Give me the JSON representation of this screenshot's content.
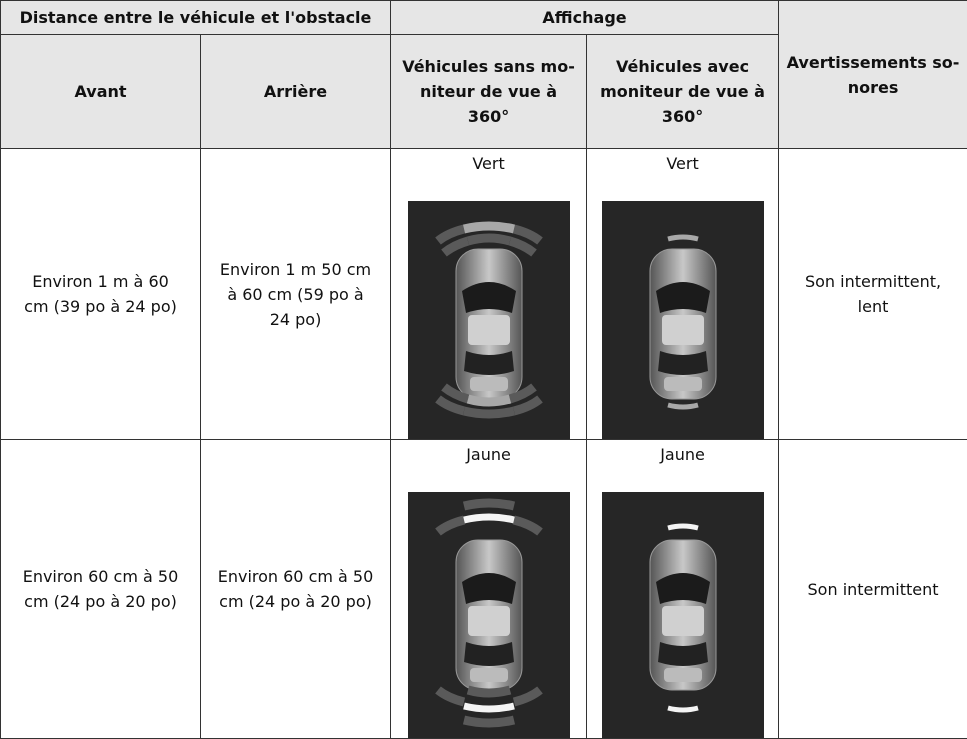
{
  "table": {
    "header_top": [
      "Distance entre le véhicule et l'obstacle",
      "Affichage",
      "Avertissements so-\nnores"
    ],
    "header_sub": [
      "Avant",
      "Arrière",
      "Véhicules sans mo-\nniteur de vue à\n360°",
      "Véhicules avec\nmoniteur de vue à\n360°"
    ],
    "rows": [
      [
        "Environ 1 m à 60\ncm (39 po à 24 po)",
        "Environ 1 m 50 cm\nà 60 cm (59 po à\n24 po)",
        "Vert",
        "Vert",
        "Son intermittent,\nlent"
      ],
      [
        "Environ 60 cm à 50\ncm (24 po à 20 po)",
        "Environ 60 cm à 50\ncm (24 po à 20 po)",
        "Jaune",
        "Jaune",
        "Son intermittent"
      ]
    ]
  }
}
